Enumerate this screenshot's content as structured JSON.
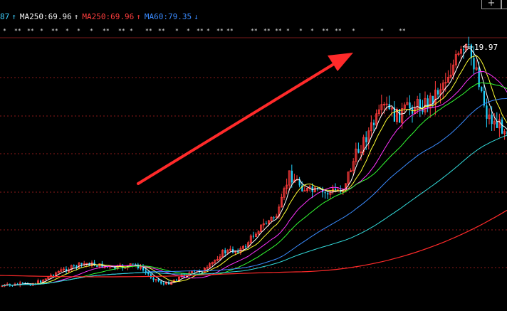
{
  "legend": [
    {
      "text": "87",
      "color": "#3fd0ff",
      "arrow": "↑",
      "arrow_color": "#3fd0ff"
    },
    {
      "text": "MA250:69.96",
      "color": "#f5f5f5",
      "arrow": "↑",
      "arrow_color": "#f5f5f5"
    },
    {
      "text": "MA250:69.96",
      "color": "#ff3d3d",
      "arrow": "↑",
      "arrow_color": "#ff3d3d"
    },
    {
      "text": "MA60:79.35",
      "color": "#3a8bff",
      "arrow": "↓",
      "arrow_color": "#3a8bff"
    }
  ],
  "marker_row": [
    "*",
    "**",
    "**",
    "*",
    "**",
    "*",
    "*",
    "*",
    "**",
    "**",
    "*",
    "**",
    "**",
    "*",
    "*",
    "**",
    "*",
    "**",
    "**",
    "**",
    "**",
    "**",
    "*",
    "*",
    "*",
    "**",
    "**",
    "*",
    "*",
    "**"
  ],
  "window_buttons": {
    "plus": "+",
    "minus": "−"
  },
  "chart_data": {
    "type": "candlestick",
    "annotations": [
      {
        "text": "19.97",
        "kind": "high_marker"
      }
    ],
    "colors": {
      "up": "#ff3b3b",
      "down": "#22d4ff",
      "ma5": "#ffffff",
      "ma10": "#ffff33",
      "ma20": "#ff33ff",
      "ma30": "#33ff33",
      "ma60": "#3a8bff",
      "ma120": "#33dddd",
      "ma250": "#ff2a2a",
      "arrow": "#ff2a2a",
      "grid": "#8b1a1a"
    }
  }
}
